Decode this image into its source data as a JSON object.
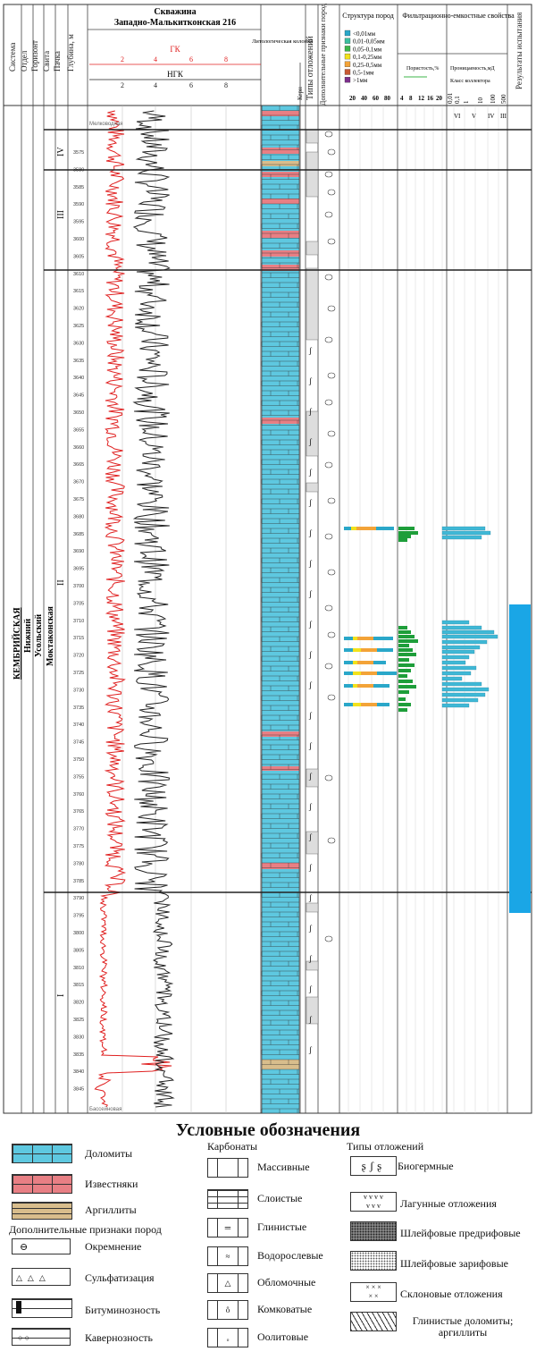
{
  "well": {
    "title_line1": "Скважина",
    "title_line2": "Западно-Малькитконская 216"
  },
  "headers": {
    "system": "Система",
    "dept": "Отдел",
    "horizon": "Горизонт",
    "suite": "Свита",
    "pack": "Пачка",
    "depth": "Глубина, м",
    "lithology": "Литологическая колонка",
    "core": "Керн",
    "deposit_types": "Типы отложений",
    "extra_signs": "Дополнительные признаки пород",
    "structure": "Структура пород",
    "filtration": "Фильтрационно-емкостные свойства",
    "results": "Результаты испытания"
  },
  "curves": {
    "gk_label": "ГК",
    "ngk_label": "НГК",
    "gk_ticks": [
      "2",
      "4",
      "6",
      "8"
    ],
    "ngk_ticks": [
      "2",
      "4",
      "6",
      "8"
    ],
    "gk_color": "#e02020",
    "ngk_color": "#222222",
    "top_marker": "Мелководная",
    "bottom_marker": "Бассейновая"
  },
  "strat_column": {
    "system": "КЕМБРИЙСКАЯ",
    "dept": "Нижний",
    "horizon": "Усольский",
    "suite": "Моктаконская",
    "packs": [
      "IV",
      "III",
      "II",
      "I"
    ]
  },
  "structure_legend": {
    "items": [
      {
        "label": "<0,01мм",
        "color": "#2aa7c9"
      },
      {
        "label": "0,01-0,05мм",
        "color": "#3cc0a0"
      },
      {
        "label": "0,05-0,1мм",
        "color": "#3cb64a"
      },
      {
        "label": "0,1-0,25мм",
        "color": "#f2e21c"
      },
      {
        "label": "0,25-0,5мм",
        "color": "#f3a338"
      },
      {
        "label": "0,5-1мм",
        "color": "#c85a34"
      },
      {
        "label": ">1мм",
        "color": "#7c2f8c"
      }
    ],
    "scale": [
      "20",
      "40",
      "60",
      "80"
    ]
  },
  "porosity": {
    "label": "Пористость,%",
    "scale": [
      "4",
      "8",
      "12",
      "16",
      "20"
    ]
  },
  "permeability": {
    "label": "Проницаемость,мД",
    "class_label": "Класс коллектора",
    "scale": [
      "0,01",
      "0,1",
      "1",
      "10",
      "100",
      "500"
    ],
    "classes": [
      "VI",
      "V",
      "IV",
      "III"
    ]
  },
  "depths": [
    "3575",
    "3580",
    "3585",
    "3590",
    "3595",
    "3600",
    "3605",
    "3610",
    "3615",
    "3620",
    "3625",
    "3630",
    "3635",
    "3640",
    "3645",
    "3650",
    "3655",
    "3660",
    "3665",
    "3670",
    "3675",
    "3680",
    "3685",
    "3690",
    "3695",
    "3700",
    "3705",
    "3710",
    "3715",
    "3720",
    "3725",
    "3730",
    "3735",
    "3740",
    "3745",
    "3750",
    "3755",
    "3760",
    "3765",
    "3770",
    "3775",
    "3780",
    "3785",
    "3790",
    "3795",
    "3800",
    "3805",
    "3810",
    "3815",
    "3820",
    "3825",
    "3830",
    "3835",
    "3840",
    "3845"
  ],
  "legend": {
    "title": "Условные обозначения",
    "rocks": [
      "Доломиты",
      "Известняки",
      "Аргиллиты"
    ],
    "carbonates_title": "Карбонаты",
    "carbonates": [
      "Массивные",
      "Слоистые",
      "Глинистые",
      "Водорослевые",
      "Обломочные",
      "Комковатые",
      "Оолитовые"
    ],
    "extra_title": "Дополнительные признаки пород",
    "extras": [
      "Окремнение",
      "Сульфатизация",
      "Битуминозность",
      "Кавернозность"
    ],
    "types_title": "Типы отложений",
    "types": [
      "Биогермные",
      "Лагунные отложения",
      "Шлейфовые предрифовые",
      "Шлейфовые зарифовые",
      "Склоновые отложения",
      "Глинистые доломиты; аргиллиты"
    ]
  },
  "colors": {
    "dolomite": "#5ec8e0",
    "limestone": "#e87f84",
    "argillite": "#d8bd8c",
    "test_bar": "#1aa6e6",
    "grid": "#888888"
  }
}
